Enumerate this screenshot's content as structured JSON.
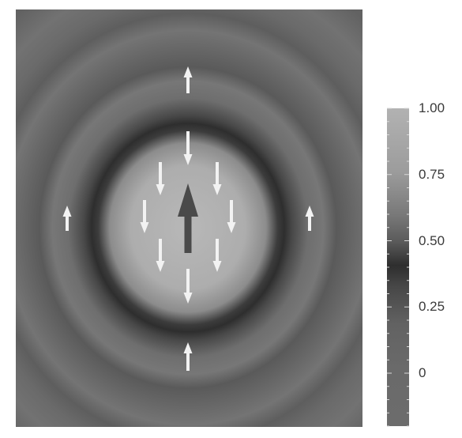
{
  "colorbar": {
    "tick_labels": [
      "1.00",
      "0.75",
      "0.50",
      "0.25",
      "0"
    ],
    "tick_values": [
      1.0,
      0.75,
      0.5,
      0.25,
      0.0
    ],
    "value_range": [
      -0.2,
      1.0
    ]
  },
  "colors": {
    "core_light": "#b4b4b4",
    "background_mid": "#6a6a6a",
    "dark_ring": "#2e2e2e",
    "arrow_light": "#f2f2f2",
    "arrow_dark": "#4a4a4a"
  },
  "icons": {
    "small_arrow": "arrow-icon",
    "central_arrow": "central-arrow-icon"
  }
}
